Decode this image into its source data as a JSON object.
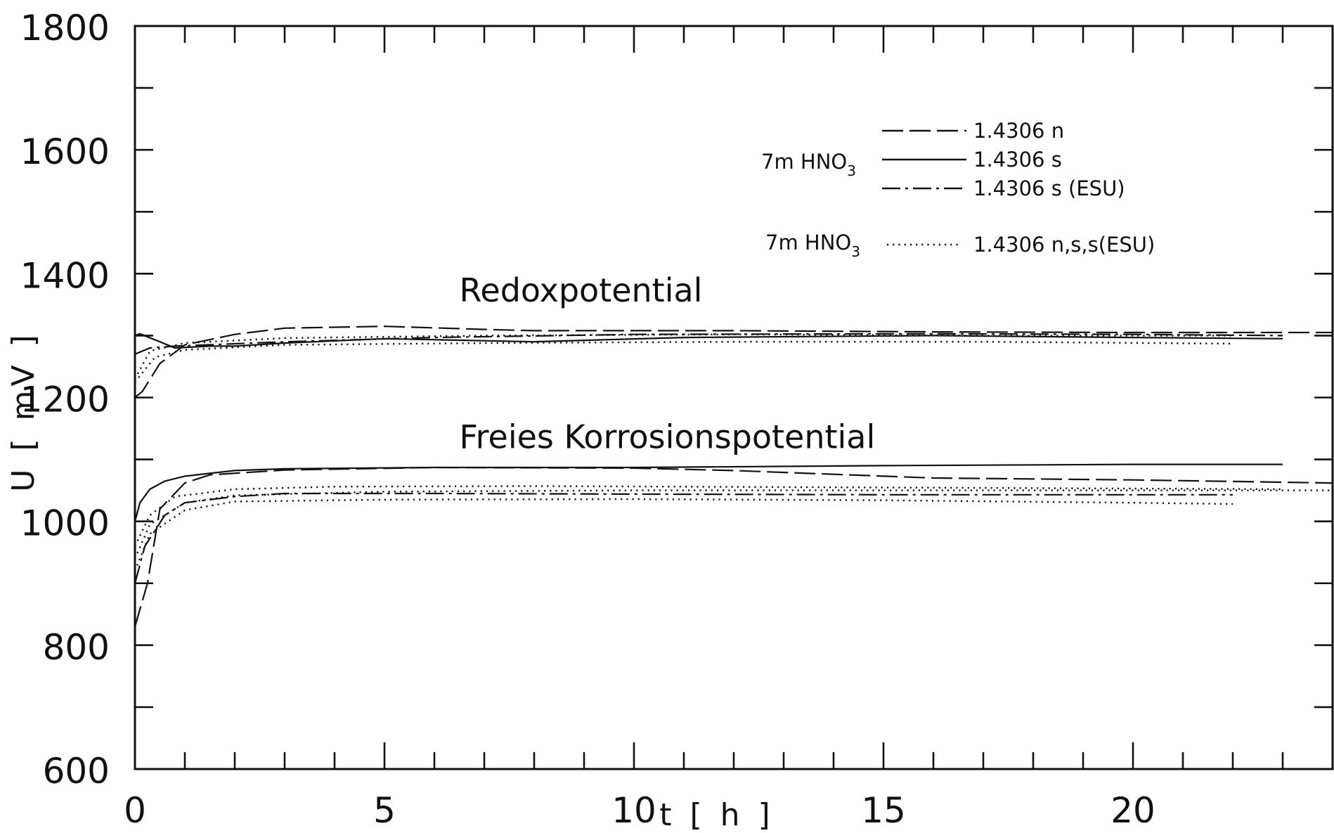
{
  "chart_data": {
    "type": "line",
    "xlabel": "t [ h ]",
    "ylabel": "U [ mV ]",
    "xlim": [
      0,
      24
    ],
    "ylim": [
      600,
      1800
    ],
    "x_ticks": [
      0,
      5,
      10,
      15,
      20
    ],
    "y_ticks": [
      600,
      800,
      1000,
      1200,
      1400,
      1600,
      1800
    ],
    "grid": false,
    "annotations": [
      {
        "text": "Redoxpotential",
        "x": 6.5,
        "y": 1355
      },
      {
        "text": "Freies Korrosionspotential",
        "x": 6.5,
        "y": 1118
      }
    ],
    "legend": {
      "placement": "top-right",
      "groups": [
        {
          "label_main": "7m HNO",
          "label_sub": "3",
          "entries": [
            {
              "label": "1.4306 n",
              "style": "dashed"
            },
            {
              "label": "1.4306 s",
              "style": "solid"
            },
            {
              "label": "1.4306 s (ESU)",
              "style": "dashdot"
            }
          ]
        },
        {
          "label_main": "7m HNO",
          "label_sub": "3",
          "entries": [
            {
              "label": "1.4306 n,s,s(ESU)",
              "style": "dotted"
            }
          ]
        }
      ]
    },
    "series": [
      {
        "group": "Redoxpotential",
        "style": "dashed",
        "x": [
          0,
          0.15,
          0.5,
          1,
          2,
          3,
          5,
          7,
          8,
          12,
          16,
          20,
          24
        ],
        "y": [
          1200,
          1210,
          1255,
          1285,
          1302,
          1312,
          1315,
          1310,
          1308,
          1308,
          1306,
          1305,
          1305
        ]
      },
      {
        "group": "Redoxpotential",
        "style": "solid",
        "x": [
          0,
          0.1,
          0.25,
          0.5,
          0.8,
          1.5,
          2,
          3,
          5,
          8,
          11,
          16,
          20,
          23
        ],
        "y": [
          1300,
          1303,
          1298,
          1290,
          1280,
          1283,
          1283,
          1288,
          1295,
          1290,
          1297,
          1300,
          1297,
          1295
        ]
      },
      {
        "group": "Redoxpotential",
        "style": "dashdot",
        "x": [
          0,
          0.3,
          0.8,
          3,
          6,
          10,
          16,
          20,
          23
        ],
        "y": [
          1270,
          1280,
          1283,
          1290,
          1297,
          1302,
          1303,
          1302,
          1300
        ]
      },
      {
        "group": "Redoxpotential",
        "style": "dotted",
        "x": [
          0,
          0.3,
          1,
          3,
          7,
          12,
          17,
          22
        ],
        "y": [
          1230,
          1275,
          1288,
          1296,
          1300,
          1302,
          1300,
          1300
        ]
      },
      {
        "group": "Redoxpotential",
        "style": "dotted",
        "x": [
          0,
          0.4,
          1,
          3,
          7,
          12,
          17,
          22
        ],
        "y": [
          1225,
          1265,
          1277,
          1285,
          1288,
          1290,
          1290,
          1287
        ]
      },
      {
        "group": "Freies Korrosionspotential",
        "style": "dashed",
        "x": [
          0,
          0.25,
          0.5,
          1,
          1.5,
          3,
          6,
          10,
          12,
          16,
          20,
          24
        ],
        "y": [
          830,
          900,
          1020,
          1062,
          1075,
          1083,
          1087,
          1086,
          1082,
          1070,
          1067,
          1062
        ]
      },
      {
        "group": "Freies Korrosionspotential",
        "style": "solid",
        "x": [
          0,
          0.1,
          0.3,
          0.6,
          1,
          2,
          3,
          6,
          10,
          15,
          20,
          23
        ],
        "y": [
          1000,
          1030,
          1052,
          1065,
          1073,
          1082,
          1085,
          1087,
          1087,
          1090,
          1092,
          1092
        ]
      },
      {
        "group": "Freies Korrosionspotential",
        "style": "dashdot",
        "x": [
          0,
          0.2,
          0.6,
          1,
          2,
          3,
          6,
          10,
          15,
          20,
          22
        ],
        "y": [
          900,
          960,
          1010,
          1030,
          1040,
          1045,
          1045,
          1044,
          1043,
          1043,
          1043
        ]
      },
      {
        "group": "Freies Korrosionspotential",
        "style": "dotted",
        "x": [
          0,
          0.3,
          0.8,
          2,
          4,
          8,
          14,
          20,
          23
        ],
        "y": [
          960,
          1010,
          1040,
          1052,
          1056,
          1057,
          1055,
          1053,
          1052
        ]
      },
      {
        "group": "Freies Korrosionspotential",
        "style": "dotted",
        "x": [
          0,
          0.3,
          1,
          2,
          5,
          10,
          15,
          20,
          24
        ],
        "y": [
          940,
          995,
          1030,
          1042,
          1048,
          1050,
          1050,
          1050,
          1050
        ]
      },
      {
        "group": "Freies Korrosionspotential",
        "style": "dotted",
        "x": [
          0,
          0.3,
          1,
          2,
          5,
          10,
          15,
          20,
          22
        ],
        "y": [
          920,
          980,
          1018,
          1032,
          1035,
          1036,
          1034,
          1030,
          1028
        ]
      }
    ]
  }
}
